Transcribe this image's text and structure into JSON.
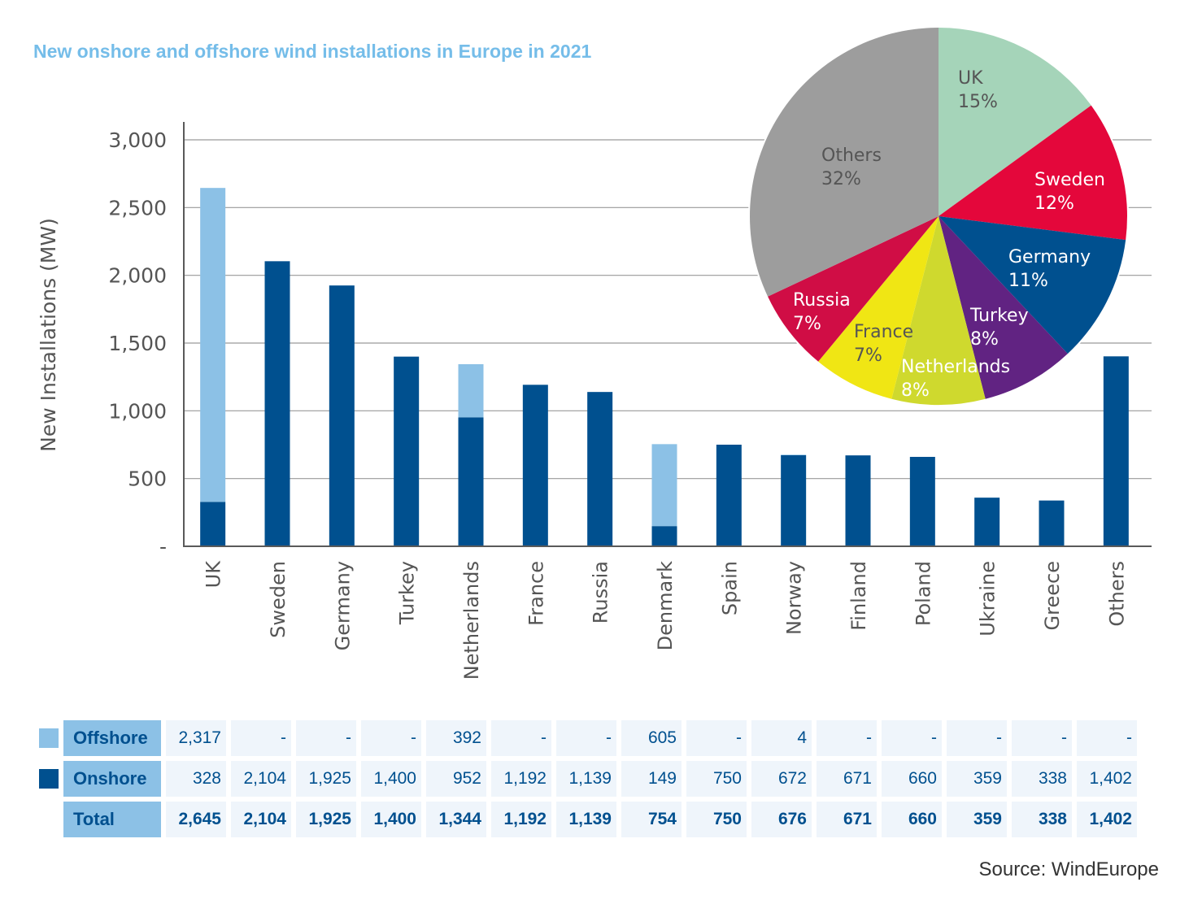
{
  "title": "New onshore and offshore wind installations in Europe in 2021",
  "source": "Source: WindEurope",
  "colors": {
    "offshore": "#8cc1e6",
    "onshore": "#00508f",
    "grid": "#9a9a9a",
    "axis": "#5a5a5a",
    "tick_text": "#555555"
  },
  "chart_data": [
    {
      "type": "bar",
      "stacked": true,
      "title": "New onshore and offshore wind installations in Europe in 2021",
      "xlabel": "",
      "ylabel": "New  Installations (MW)",
      "ylim": [
        0,
        3000
      ],
      "yticks": [
        0,
        500,
        1000,
        1500,
        2000,
        2500,
        3000
      ],
      "ytick_labels": [
        "-",
        "500",
        "1,000",
        "1,500",
        "2,000",
        "2,500",
        "3,000"
      ],
      "grid": true,
      "categories": [
        "UK",
        "Sweden",
        "Germany",
        "Turkey",
        "Netherlands",
        "France",
        "Russia",
        "Denmark",
        "Spain",
        "Norway",
        "Finland",
        "Poland",
        "Ukraine",
        "Greece",
        "Others"
      ],
      "series": [
        {
          "name": "Onshore",
          "color": "#00508f",
          "values": [
            328,
            2104,
            1925,
            1400,
            952,
            1192,
            1139,
            149,
            750,
            672,
            671,
            660,
            359,
            338,
            1402
          ]
        },
        {
          "name": "Offshore",
          "color": "#8cc1e6",
          "values": [
            2317,
            0,
            0,
            0,
            392,
            0,
            0,
            605,
            0,
            4,
            0,
            0,
            0,
            0,
            0
          ]
        }
      ]
    },
    {
      "type": "pie",
      "title": "",
      "slices": [
        {
          "label": "UK",
          "value": 15,
          "pct_label": "15%",
          "color": "#a5d4b9",
          "text_color": "#555555"
        },
        {
          "label": "Sweden",
          "value": 12,
          "pct_label": "12%",
          "color": "#e4073b",
          "text_color": "#ffffff"
        },
        {
          "label": "Germany",
          "value": 11,
          "pct_label": "11%",
          "color": "#00508f",
          "text_color": "#ffffff"
        },
        {
          "label": "Turkey",
          "value": 8,
          "pct_label": "8%",
          "color": "#612382",
          "text_color": "#ffffff"
        },
        {
          "label": "Netherlands",
          "value": 8,
          "pct_label": "8%",
          "color": "#cfd92e",
          "text_color": "#ffffff"
        },
        {
          "label": "France",
          "value": 7,
          "pct_label": "7%",
          "color": "#f0e614",
          "text_color": "#555555"
        },
        {
          "label": "Russia",
          "value": 7,
          "pct_label": "7%",
          "color": "#d00d45",
          "text_color": "#ffffff"
        },
        {
          "label": "Others",
          "value": 32,
          "pct_label": "32%",
          "color": "#9d9d9d",
          "text_color": "#555555"
        }
      ]
    }
  ],
  "table": {
    "rows": [
      {
        "label": "Offshore",
        "legend": "offshore",
        "values": [
          "2,317",
          "-",
          "-",
          "-",
          "392",
          "-",
          "-",
          "605",
          "-",
          "4",
          "-",
          "-",
          "-",
          "-",
          "-"
        ]
      },
      {
        "label": "Onshore",
        "legend": "onshore",
        "values": [
          "328",
          "2,104",
          "1,925",
          "1,400",
          "952",
          "1,192",
          "1,139",
          "149",
          "750",
          "672",
          "671",
          "660",
          "359",
          "338",
          "1,402"
        ]
      },
      {
        "label": "Total",
        "legend": "",
        "values": [
          "2,645",
          "2,104",
          "1,925",
          "1,400",
          "1,344",
          "1,192",
          "1,139",
          "754",
          "750",
          "676",
          "671",
          "660",
          "359",
          "338",
          "1,402"
        ]
      }
    ]
  }
}
